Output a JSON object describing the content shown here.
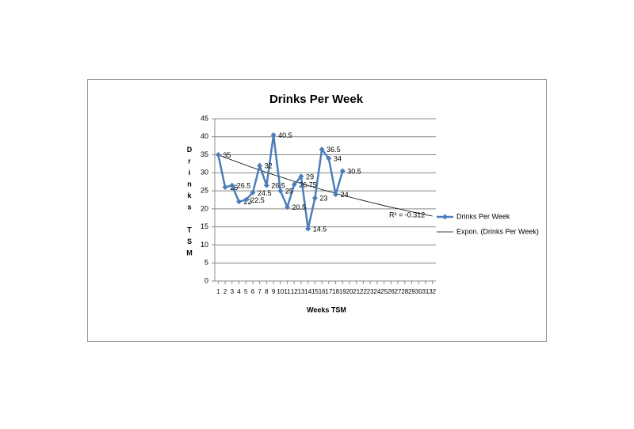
{
  "chart_data": {
    "type": "line",
    "title": "Drinks Per Week",
    "x_label": "Weeks TSM",
    "y_label": "Drinks TSM",
    "x": [
      1,
      2,
      3,
      4,
      5,
      6,
      7,
      8,
      9,
      10,
      11,
      12,
      13,
      14,
      15,
      16,
      17,
      18,
      19
    ],
    "xlim": [
      0.5,
      32.5
    ],
    "xticks": [
      1,
      2,
      3,
      4,
      5,
      6,
      7,
      8,
      9,
      10,
      11,
      12,
      13,
      14,
      15,
      16,
      17,
      18,
      19,
      20,
      21,
      22,
      23,
      24,
      25,
      26,
      27,
      28,
      29,
      30,
      31,
      32
    ],
    "ylim": [
      0,
      45
    ],
    "yticks": [
      0,
      5,
      10,
      15,
      20,
      25,
      30,
      35,
      40,
      45
    ],
    "grid": true,
    "series": [
      {
        "name": "Drinks Per Week",
        "color": "#4a7ebb",
        "values": [
          35,
          26,
          26.5,
          22,
          22.5,
          24.5,
          32,
          26.5,
          40.5,
          25,
          20.5,
          26.75,
          29,
          14.5,
          23,
          36.5,
          34,
          24,
          30.5
        ]
      }
    ],
    "trendline": {
      "name": "Expon. (Drinks Per Week)",
      "x": [
        1,
        32
      ],
      "values": [
        35,
        18
      ],
      "annotation": "R² = -0.312"
    }
  }
}
